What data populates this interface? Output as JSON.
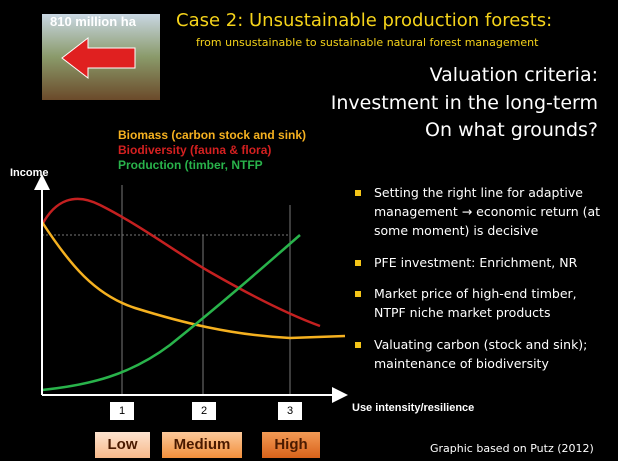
{
  "photo_label": "810 million ha",
  "header": {
    "title": "Case 2: Unsustainable production forests:",
    "subtitle": "from unsustainable to sustainable natural forest management"
  },
  "headings": [
    "Valuation criteria:",
    "Investment in the long-term",
    "On what grounds?"
  ],
  "legend": [
    "Biomass (carbon stock and sink)",
    "Biodiversity (fauna & flora)",
    "Production (timber, NTFP"
  ],
  "axes": {
    "y_label": "Income",
    "x_label": "Use intensity/resilience",
    "markers": [
      "1",
      "2",
      "3"
    ]
  },
  "levels": [
    "Low",
    "Medium",
    "High"
  ],
  "bullets": [
    "Setting the right line for adaptive management → economic return (at some moment) is decisive",
    "PFE investment: Enrichment, NR",
    "Market price of high-end timber, NTPF niche market products",
    "Valuating carbon (stock and sink); maintenance of biodiversity"
  ],
  "source": "Graphic based on Putz (2012)"
}
